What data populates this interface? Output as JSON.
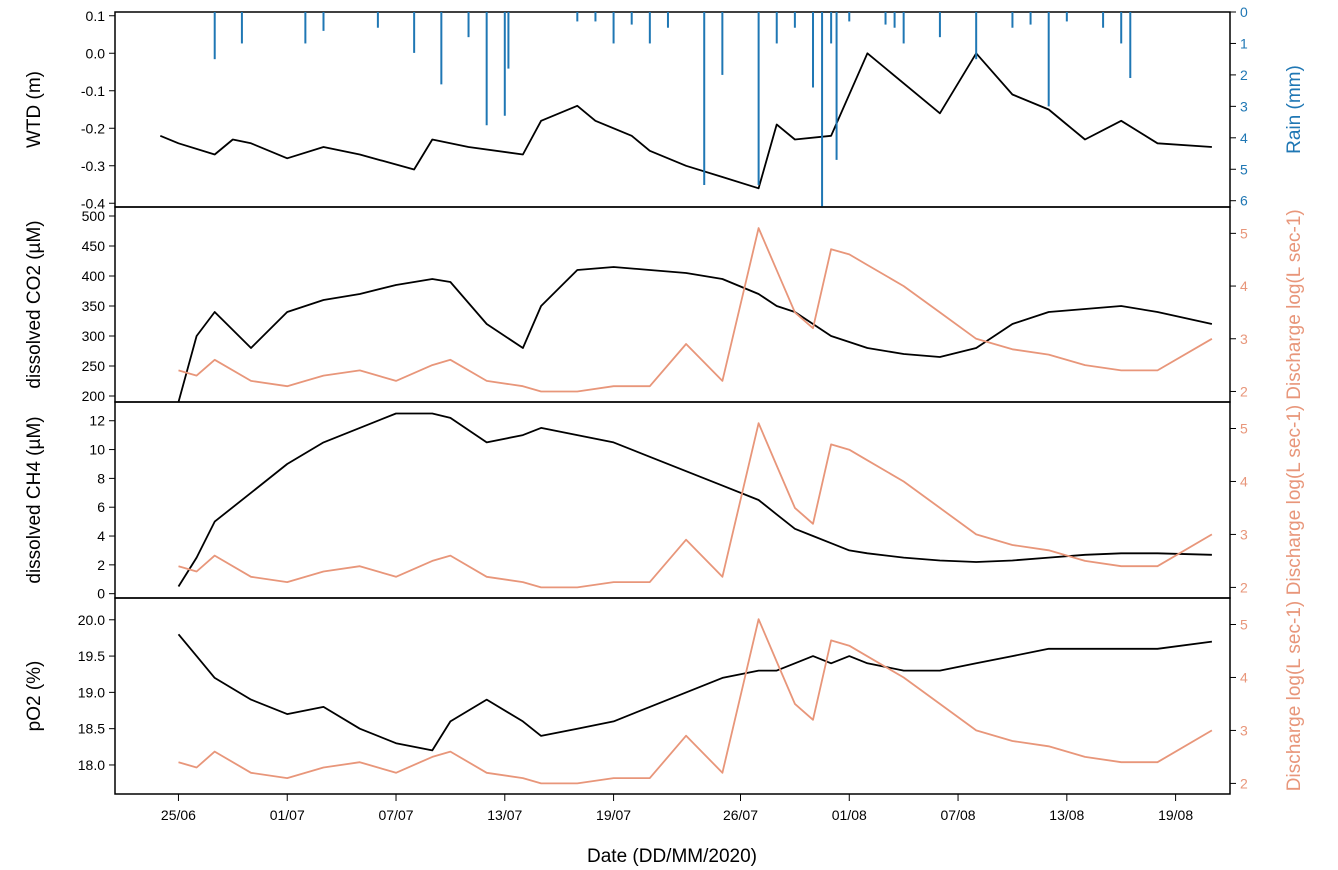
{
  "figure": {
    "xlabel": "Date (DD/MM/2020)",
    "xtick_labels": [
      "25/06",
      "01/07",
      "07/07",
      "13/07",
      "19/07",
      "26/07",
      "01/08",
      "07/08",
      "13/08",
      "19/08"
    ]
  },
  "colors": {
    "primary": "#000000",
    "rain": "#1f77b4",
    "discharge": "#e8967a"
  },
  "chart_data": [
    {
      "type": "line",
      "panel": "WTD and rain",
      "ylabel": "WTD (m)",
      "y2label": "Rain (mm)",
      "ylim": [
        -0.41,
        0.11
      ],
      "y2lim": [
        0,
        6.2
      ],
      "y2_inverted": true,
      "yticks": [
        "0.1",
        "0.0",
        "-0.1",
        "-0.2",
        "-0.3",
        "-0.4"
      ],
      "y2ticks": [
        "0",
        "1",
        "2",
        "3",
        "4",
        "5",
        "6"
      ],
      "x_days": [
        -1,
        0,
        2,
        3,
        4,
        6,
        8,
        10,
        13,
        14,
        16,
        19,
        20,
        22,
        23,
        25,
        26,
        28,
        30,
        32,
        33,
        34,
        36,
        38,
        41,
        42,
        44,
        46,
        48,
        49,
        50,
        52,
        54,
        57
      ],
      "series": [
        {
          "name": "WTD",
          "color": "#000000",
          "values": [
            -0.22,
            -0.24,
            -0.27,
            -0.23,
            -0.24,
            -0.28,
            -0.25,
            -0.27,
            -0.31,
            -0.23,
            -0.25,
            -0.27,
            -0.18,
            -0.14,
            -0.18,
            -0.22,
            -0.26,
            -0.3,
            -0.33,
            -0.36,
            -0.19,
            -0.23,
            -0.22,
            -0.0,
            -0.12,
            -0.16,
            -0.0,
            -0.11,
            -0.15,
            -0.19,
            -0.23,
            -0.18,
            -0.24,
            -0.25
          ]
        },
        {
          "name": "Rain",
          "color": "#1f77b4",
          "bars": true,
          "x_days": [
            2,
            3.5,
            7,
            8,
            11,
            13,
            14.5,
            16,
            17,
            18,
            18.2,
            22,
            23,
            24,
            25,
            26,
            27,
            29,
            30,
            32,
            33,
            34,
            35,
            35.5,
            36,
            36.3,
            37,
            39,
            39.5,
            40,
            42,
            44,
            46,
            47,
            48,
            49,
            51,
            52,
            52.5
          ],
          "values": [
            1.5,
            1.0,
            1.0,
            0.6,
            0.5,
            1.3,
            2.3,
            0.8,
            3.6,
            3.3,
            1.8,
            0.3,
            0.3,
            1.0,
            0.4,
            1.0,
            0.5,
            5.5,
            2.0,
            5.5,
            1.0,
            0.5,
            2.4,
            6.2,
            1.0,
            4.7,
            0.3,
            0.4,
            0.5,
            1.0,
            0.8,
            1.5,
            0.5,
            0.4,
            3.0,
            0.3,
            0.5,
            1.0,
            2.1
          ]
        }
      ]
    },
    {
      "type": "line",
      "panel": "CO2",
      "ylabel": "dissolved CO2 (µM)",
      "y2label": "Discharge log(L sec-1)",
      "ylim": [
        190,
        515
      ],
      "y2lim": [
        1.8,
        5.5
      ],
      "yticks": [
        "500",
        "450",
        "400",
        "350",
        "300",
        "250",
        "200"
      ],
      "y2ticks": [
        "2",
        "3",
        "4",
        "5"
      ],
      "x_days": [
        0,
        1,
        2,
        4,
        6,
        8,
        10,
        12,
        14,
        15,
        17,
        19,
        20,
        22,
        24,
        26,
        28,
        30,
        32,
        33,
        34,
        35,
        36,
        37,
        38,
        40,
        42,
        44,
        46,
        48,
        50,
        52,
        54,
        57
      ],
      "series": [
        {
          "name": "CO2",
          "color": "#000000",
          "values": [
            190,
            300,
            340,
            280,
            340,
            360,
            370,
            385,
            395,
            390,
            320,
            280,
            350,
            410,
            415,
            410,
            405,
            395,
            370,
            350,
            340,
            320,
            300,
            290,
            280,
            270,
            265,
            280,
            320,
            340,
            345,
            350,
            340,
            320
          ]
        },
        {
          "name": "Discharge",
          "color": "#e8967a",
          "values": [
            2.4,
            2.3,
            2.6,
            2.2,
            2.1,
            2.3,
            2.4,
            2.2,
            2.5,
            2.6,
            2.2,
            2.1,
            2.0,
            2.0,
            2.1,
            2.1,
            2.9,
            2.2,
            5.1,
            4.3,
            3.5,
            3.2,
            4.7,
            4.6,
            4.4,
            4.0,
            3.5,
            3.0,
            2.8,
            2.7,
            2.5,
            2.4,
            2.4,
            3.0
          ]
        }
      ]
    },
    {
      "type": "line",
      "panel": "CH4",
      "ylabel": "dissolved CH4 (µM)",
      "y2label": "Discharge log(L sec-1)",
      "ylim": [
        -0.3,
        13.3
      ],
      "y2lim": [
        1.8,
        5.5
      ],
      "yticks": [
        "12",
        "10",
        "8",
        "6",
        "4",
        "2",
        "0"
      ],
      "y2ticks": [
        "2",
        "3",
        "4",
        "5"
      ],
      "x_days": [
        0,
        1,
        2,
        4,
        6,
        8,
        10,
        12,
        14,
        15,
        17,
        19,
        20,
        22,
        24,
        26,
        28,
        30,
        32,
        33,
        34,
        35,
        36,
        37,
        38,
        40,
        42,
        44,
        46,
        48,
        50,
        52,
        54,
        57
      ],
      "series": [
        {
          "name": "CH4",
          "color": "#000000",
          "values": [
            0.5,
            2.5,
            5.0,
            7.0,
            9.0,
            10.5,
            11.5,
            12.5,
            12.5,
            12.2,
            10.5,
            11.0,
            11.5,
            11.0,
            10.5,
            9.5,
            8.5,
            7.5,
            6.5,
            5.5,
            4.5,
            4.0,
            3.5,
            3.0,
            2.8,
            2.5,
            2.3,
            2.2,
            2.3,
            2.5,
            2.7,
            2.8,
            2.8,
            2.7
          ]
        },
        {
          "name": "Discharge",
          "color": "#e8967a",
          "values": [
            2.4,
            2.3,
            2.6,
            2.2,
            2.1,
            2.3,
            2.4,
            2.2,
            2.5,
            2.6,
            2.2,
            2.1,
            2.0,
            2.0,
            2.1,
            2.1,
            2.9,
            2.2,
            5.1,
            4.3,
            3.5,
            3.2,
            4.7,
            4.6,
            4.4,
            4.0,
            3.5,
            3.0,
            2.8,
            2.7,
            2.5,
            2.4,
            2.4,
            3.0
          ]
        }
      ]
    },
    {
      "type": "line",
      "panel": "pO2",
      "ylabel": "pO2 (%)",
      "y2label": "Discharge log(L sec-1)",
      "ylim": [
        17.6,
        20.3
      ],
      "y2lim": [
        1.8,
        5.5
      ],
      "yticks": [
        "20.0",
        "19.5",
        "19.0",
        "18.5",
        "18.0"
      ],
      "y2ticks": [
        "2",
        "3",
        "4",
        "5"
      ],
      "x_days": [
        0,
        1,
        2,
        4,
        6,
        8,
        10,
        12,
        14,
        15,
        17,
        19,
        20,
        22,
        24,
        26,
        28,
        30,
        32,
        33,
        34,
        35,
        36,
        37,
        38,
        40,
        42,
        44,
        46,
        48,
        50,
        52,
        54,
        57
      ],
      "series": [
        {
          "name": "pO2",
          "color": "#000000",
          "values": [
            19.8,
            19.5,
            19.2,
            18.9,
            18.7,
            18.8,
            18.5,
            18.3,
            18.2,
            18.6,
            18.9,
            18.6,
            18.4,
            18.5,
            18.6,
            18.8,
            19.0,
            19.2,
            19.3,
            19.3,
            19.4,
            19.5,
            19.4,
            19.5,
            19.4,
            19.3,
            19.3,
            19.4,
            19.5,
            19.6,
            19.6,
            19.6,
            19.6,
            19.7
          ]
        },
        {
          "name": "Discharge",
          "color": "#e8967a",
          "values": [
            2.4,
            2.3,
            2.6,
            2.2,
            2.1,
            2.3,
            2.4,
            2.2,
            2.5,
            2.6,
            2.2,
            2.1,
            2.0,
            2.0,
            2.1,
            2.1,
            2.9,
            2.2,
            5.1,
            4.3,
            3.5,
            3.2,
            4.7,
            4.6,
            4.4,
            4.0,
            3.5,
            3.0,
            2.8,
            2.7,
            2.5,
            2.4,
            2.4,
            3.0
          ]
        }
      ]
    }
  ]
}
